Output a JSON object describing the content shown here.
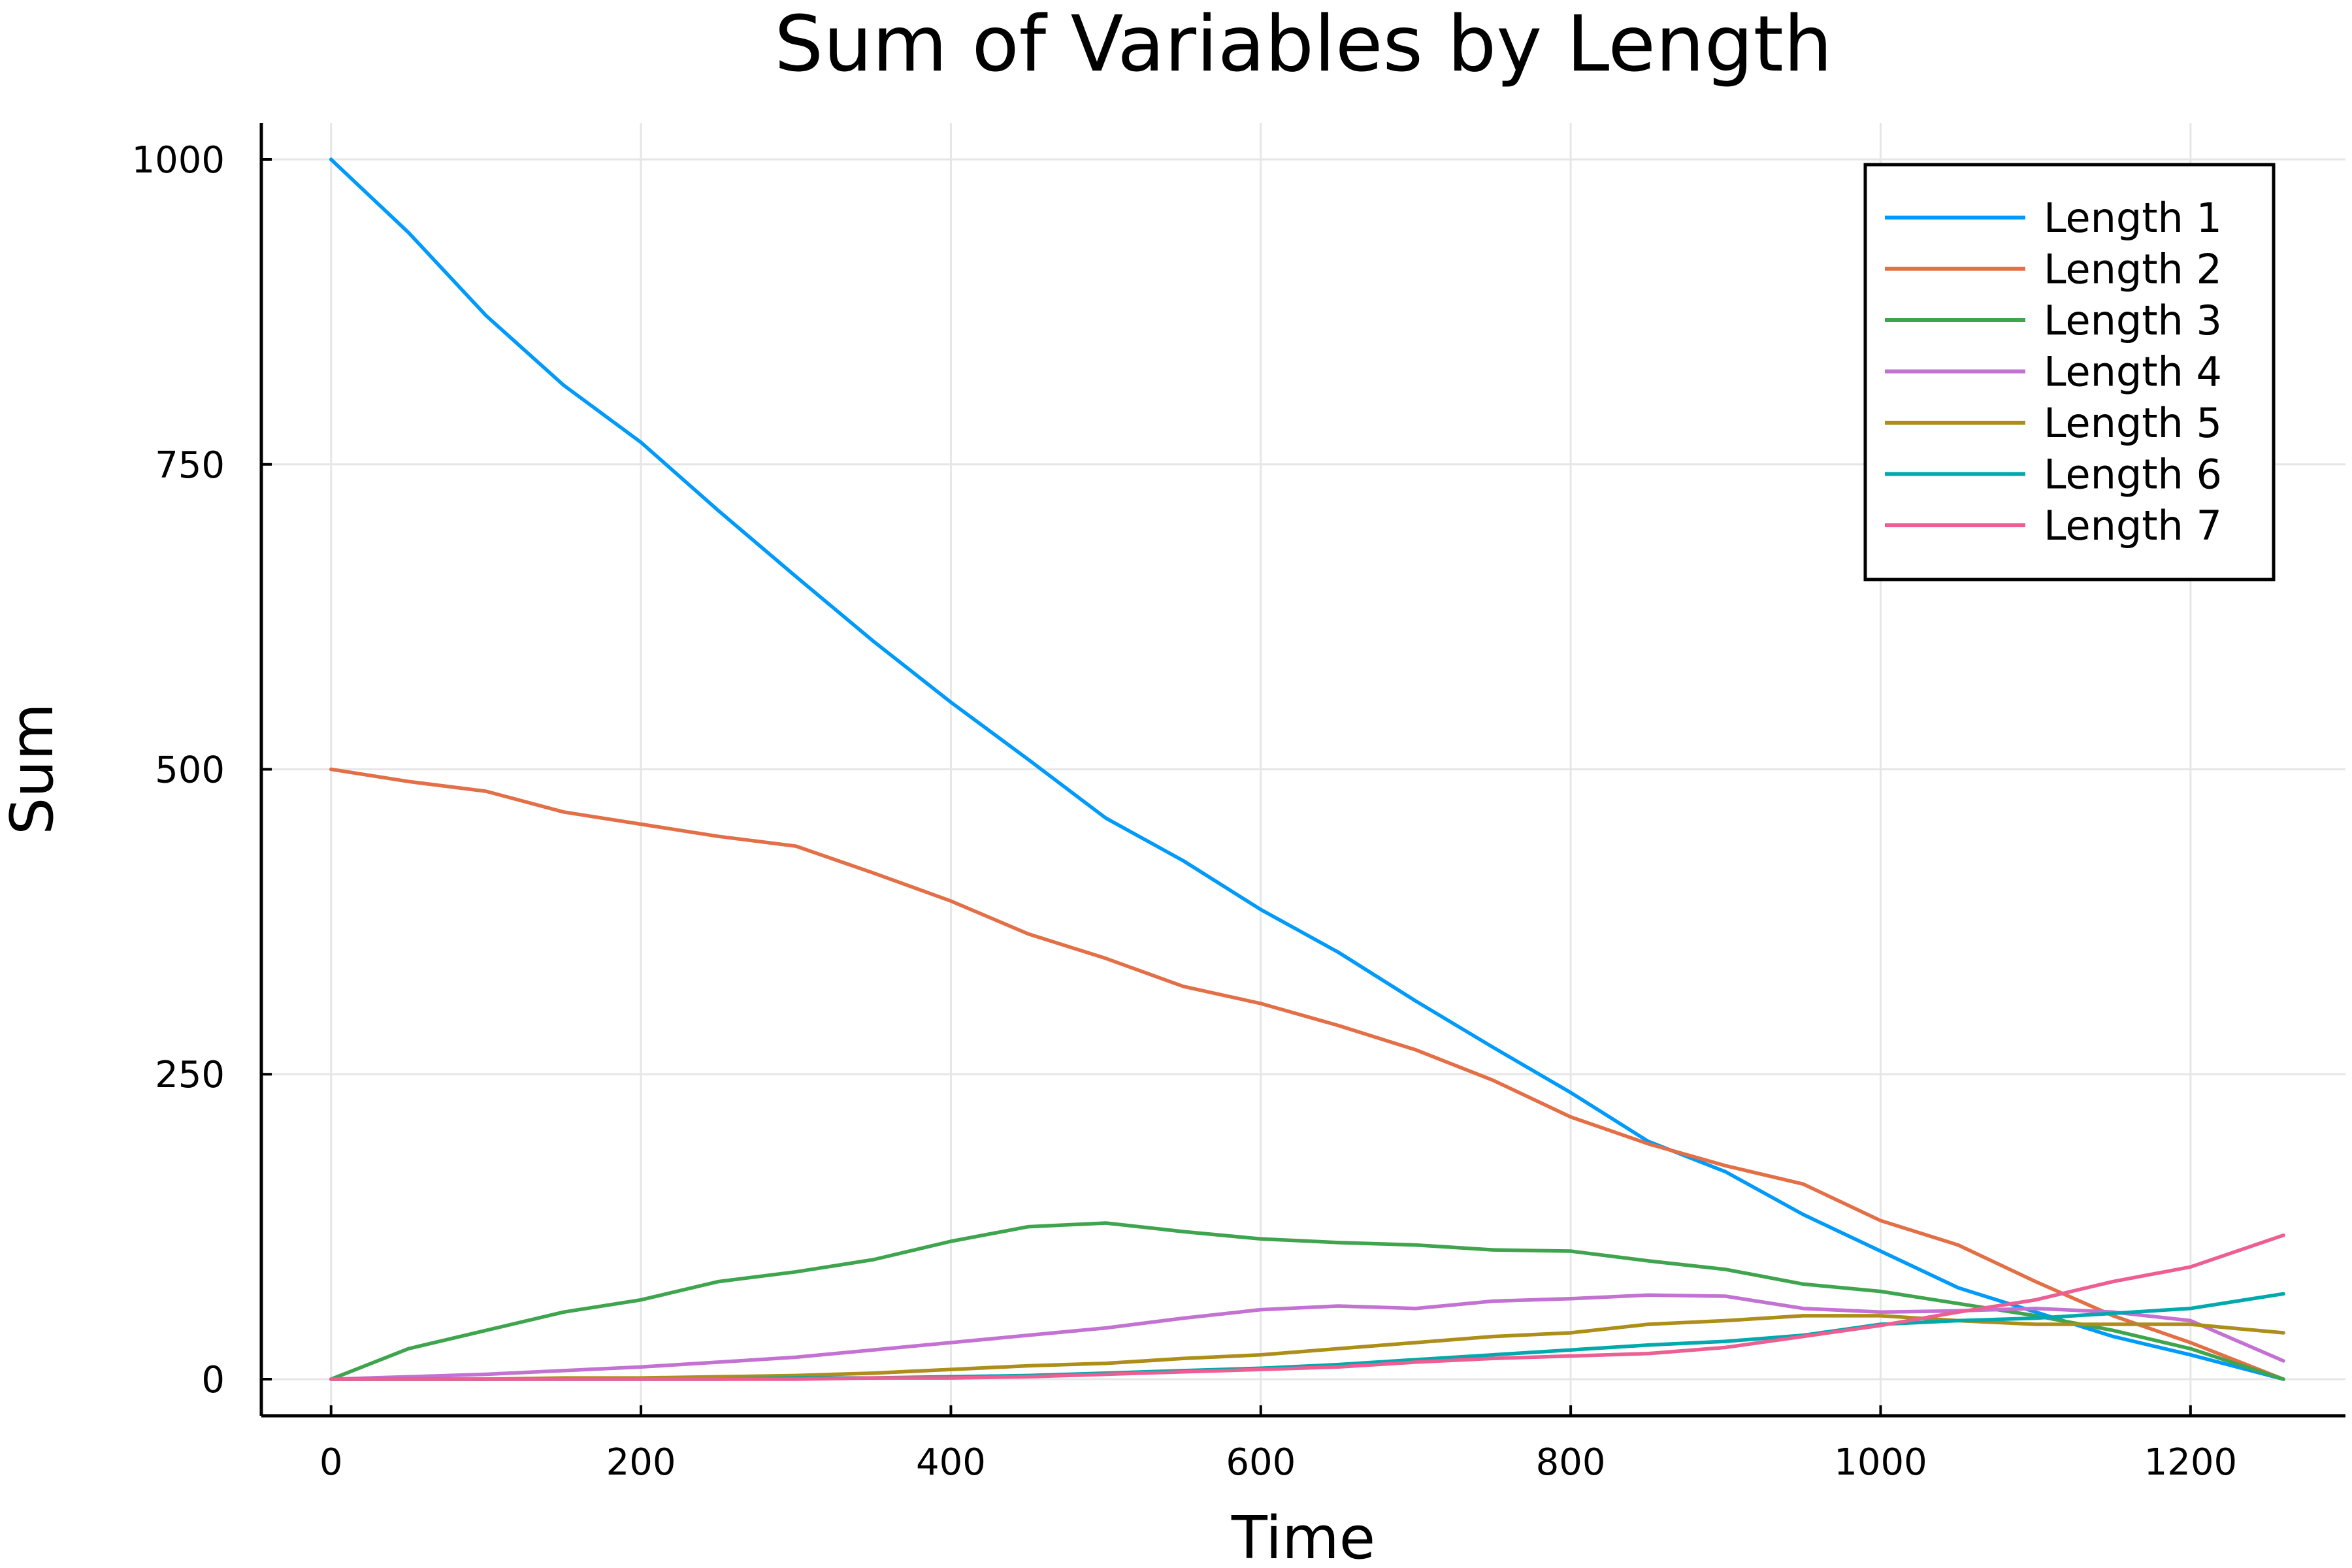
{
  "chart_data": {
    "type": "line",
    "title": "Sum of Variables by Length",
    "xlabel": "Time",
    "ylabel": "Sum",
    "xlim": [
      -45,
      1300
    ],
    "ylim": [
      -30,
      1030
    ],
    "xticks": [
      0,
      200,
      400,
      600,
      800,
      1000,
      1200
    ],
    "yticks": [
      0,
      250,
      500,
      750,
      1000
    ],
    "grid": true,
    "legend_position": "top-right",
    "x": [
      0,
      50,
      100,
      150,
      200,
      250,
      300,
      350,
      400,
      450,
      500,
      550,
      600,
      650,
      700,
      750,
      800,
      850,
      900,
      950,
      1000,
      1050,
      1100,
      1150,
      1200,
      1260
    ],
    "series": [
      {
        "name": "Length 1",
        "color": "#009AFA",
        "values": [
          1000,
          940,
          872,
          815,
          768,
          712,
          658,
          605,
          555,
          508,
          460,
          425,
          385,
          350,
          310,
          272,
          235,
          195,
          170,
          135,
          105,
          75,
          55,
          35,
          20,
          0
        ]
      },
      {
        "name": "Length 2",
        "color": "#E36F47",
        "values": [
          500,
          490,
          482,
          465,
          455,
          445,
          437,
          415,
          392,
          365,
          345,
          322,
          308,
          290,
          270,
          245,
          215,
          193,
          175,
          160,
          130,
          110,
          80,
          52,
          30,
          0
        ]
      },
      {
        "name": "Length 3",
        "color": "#3EA44E",
        "values": [
          0,
          25,
          40,
          55,
          65,
          80,
          88,
          98,
          113,
          125,
          128,
          121,
          115,
          112,
          110,
          106,
          105,
          97,
          90,
          78,
          72,
          62,
          52,
          40,
          25,
          0
        ]
      },
      {
        "name": "Length 4",
        "color": "#C371D2",
        "values": [
          0,
          2,
          4,
          7,
          10,
          14,
          18,
          24,
          30,
          36,
          42,
          50,
          57,
          60,
          58,
          64,
          66,
          69,
          68,
          58,
          55,
          56,
          58,
          55,
          48,
          15
        ]
      },
      {
        "name": "Length 5",
        "color": "#AC8E18",
        "values": [
          0,
          0,
          0,
          1,
          1,
          2,
          3,
          5,
          8,
          11,
          13,
          17,
          20,
          25,
          30,
          35,
          38,
          45,
          48,
          52,
          52,
          48,
          45,
          45,
          45,
          38
        ]
      },
      {
        "name": "Length 6",
        "color": "#00A9AD",
        "values": [
          0,
          0,
          0,
          0,
          0,
          0,
          1,
          1,
          2,
          3,
          5,
          7,
          9,
          12,
          16,
          20,
          24,
          28,
          31,
          36,
          45,
          48,
          50,
          54,
          58,
          70
        ]
      },
      {
        "name": "Length 7",
        "color": "#ED5E93",
        "values": [
          0,
          0,
          0,
          0,
          0,
          0,
          0,
          1,
          1,
          2,
          4,
          6,
          8,
          10,
          14,
          17,
          19,
          21,
          26,
          35,
          44,
          55,
          65,
          80,
          92,
          118
        ]
      }
    ]
  }
}
